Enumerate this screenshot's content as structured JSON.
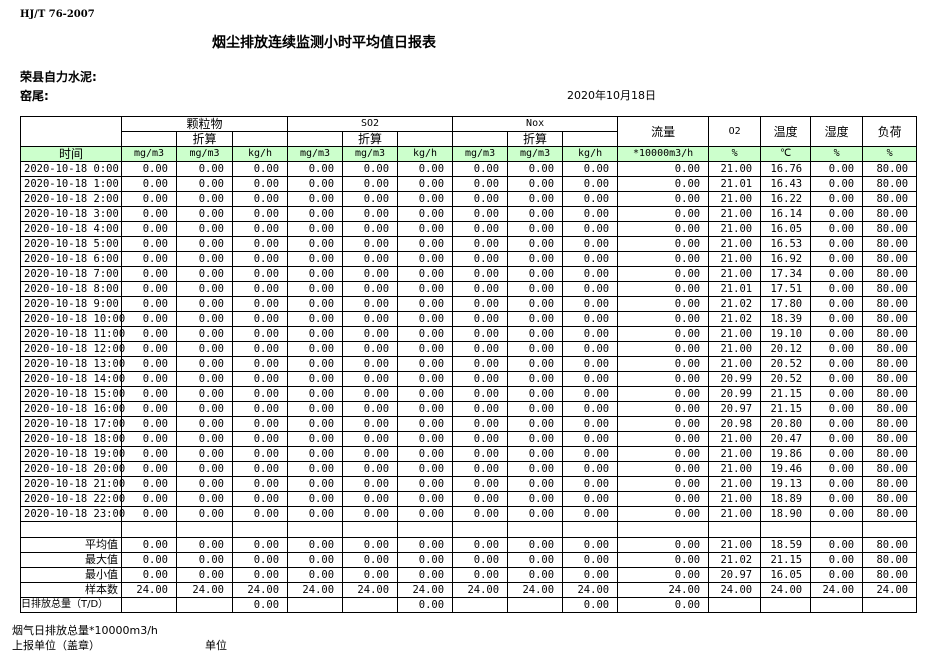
{
  "header": {
    "standard": "HJ/T  76-2007",
    "title": "烟尘排放连续监测小时平均值日报表",
    "company": "荣县自力水泥:",
    "kiln": "窑尾:",
    "date": "2020年10月18日"
  },
  "colors": {
    "unit_row_bg": "#ccffcc"
  },
  "table": {
    "groups": {
      "particulate": "颗粒物",
      "so2": "SO2",
      "nox": "Nox",
      "flow": "流量",
      "o2": "O2",
      "temp": "温度",
      "humidity": "湿度",
      "load": "负荷",
      "converted": "折算"
    },
    "units": [
      "时间",
      "mg/m3",
      "mg/m3",
      "kg/h",
      "mg/m3",
      "mg/m3",
      "kg/h",
      "mg/m3",
      "mg/m3",
      "kg/h",
      "*10000m3/h",
      "%",
      "℃",
      "%",
      "%"
    ],
    "rows": [
      [
        "2020-10-18 0:00",
        "0.00",
        "0.00",
        "0.00",
        "0.00",
        "0.00",
        "0.00",
        "0.00",
        "0.00",
        "0.00",
        "0.00",
        "21.00",
        "16.76",
        "0.00",
        "80.00"
      ],
      [
        "2020-10-18 1:00",
        "0.00",
        "0.00",
        "0.00",
        "0.00",
        "0.00",
        "0.00",
        "0.00",
        "0.00",
        "0.00",
        "0.00",
        "21.01",
        "16.43",
        "0.00",
        "80.00"
      ],
      [
        "2020-10-18 2:00",
        "0.00",
        "0.00",
        "0.00",
        "0.00",
        "0.00",
        "0.00",
        "0.00",
        "0.00",
        "0.00",
        "0.00",
        "21.00",
        "16.22",
        "0.00",
        "80.00"
      ],
      [
        "2020-10-18 3:00",
        "0.00",
        "0.00",
        "0.00",
        "0.00",
        "0.00",
        "0.00",
        "0.00",
        "0.00",
        "0.00",
        "0.00",
        "21.00",
        "16.14",
        "0.00",
        "80.00"
      ],
      [
        "2020-10-18 4:00",
        "0.00",
        "0.00",
        "0.00",
        "0.00",
        "0.00",
        "0.00",
        "0.00",
        "0.00",
        "0.00",
        "0.00",
        "21.00",
        "16.05",
        "0.00",
        "80.00"
      ],
      [
        "2020-10-18 5:00",
        "0.00",
        "0.00",
        "0.00",
        "0.00",
        "0.00",
        "0.00",
        "0.00",
        "0.00",
        "0.00",
        "0.00",
        "21.00",
        "16.53",
        "0.00",
        "80.00"
      ],
      [
        "2020-10-18 6:00",
        "0.00",
        "0.00",
        "0.00",
        "0.00",
        "0.00",
        "0.00",
        "0.00",
        "0.00",
        "0.00",
        "0.00",
        "21.00",
        "16.92",
        "0.00",
        "80.00"
      ],
      [
        "2020-10-18 7:00",
        "0.00",
        "0.00",
        "0.00",
        "0.00",
        "0.00",
        "0.00",
        "0.00",
        "0.00",
        "0.00",
        "0.00",
        "21.00",
        "17.34",
        "0.00",
        "80.00"
      ],
      [
        "2020-10-18 8:00",
        "0.00",
        "0.00",
        "0.00",
        "0.00",
        "0.00",
        "0.00",
        "0.00",
        "0.00",
        "0.00",
        "0.00",
        "21.01",
        "17.51",
        "0.00",
        "80.00"
      ],
      [
        "2020-10-18 9:00",
        "0.00",
        "0.00",
        "0.00",
        "0.00",
        "0.00",
        "0.00",
        "0.00",
        "0.00",
        "0.00",
        "0.00",
        "21.02",
        "17.80",
        "0.00",
        "80.00"
      ],
      [
        "2020-10-18 10:00",
        "0.00",
        "0.00",
        "0.00",
        "0.00",
        "0.00",
        "0.00",
        "0.00",
        "0.00",
        "0.00",
        "0.00",
        "21.02",
        "18.39",
        "0.00",
        "80.00"
      ],
      [
        "2020-10-18 11:00",
        "0.00",
        "0.00",
        "0.00",
        "0.00",
        "0.00",
        "0.00",
        "0.00",
        "0.00",
        "0.00",
        "0.00",
        "21.00",
        "19.10",
        "0.00",
        "80.00"
      ],
      [
        "2020-10-18 12:00",
        "0.00",
        "0.00",
        "0.00",
        "0.00",
        "0.00",
        "0.00",
        "0.00",
        "0.00",
        "0.00",
        "0.00",
        "21.00",
        "20.12",
        "0.00",
        "80.00"
      ],
      [
        "2020-10-18 13:00",
        "0.00",
        "0.00",
        "0.00",
        "0.00",
        "0.00",
        "0.00",
        "0.00",
        "0.00",
        "0.00",
        "0.00",
        "21.00",
        "20.52",
        "0.00",
        "80.00"
      ],
      [
        "2020-10-18 14:00",
        "0.00",
        "0.00",
        "0.00",
        "0.00",
        "0.00",
        "0.00",
        "0.00",
        "0.00",
        "0.00",
        "0.00",
        "20.99",
        "20.52",
        "0.00",
        "80.00"
      ],
      [
        "2020-10-18 15:00",
        "0.00",
        "0.00",
        "0.00",
        "0.00",
        "0.00",
        "0.00",
        "0.00",
        "0.00",
        "0.00",
        "0.00",
        "20.99",
        "21.15",
        "0.00",
        "80.00"
      ],
      [
        "2020-10-18 16:00",
        "0.00",
        "0.00",
        "0.00",
        "0.00",
        "0.00",
        "0.00",
        "0.00",
        "0.00",
        "0.00",
        "0.00",
        "20.97",
        "21.15",
        "0.00",
        "80.00"
      ],
      [
        "2020-10-18 17:00",
        "0.00",
        "0.00",
        "0.00",
        "0.00",
        "0.00",
        "0.00",
        "0.00",
        "0.00",
        "0.00",
        "0.00",
        "20.98",
        "20.80",
        "0.00",
        "80.00"
      ],
      [
        "2020-10-18 18:00",
        "0.00",
        "0.00",
        "0.00",
        "0.00",
        "0.00",
        "0.00",
        "0.00",
        "0.00",
        "0.00",
        "0.00",
        "21.00",
        "20.47",
        "0.00",
        "80.00"
      ],
      [
        "2020-10-18 19:00",
        "0.00",
        "0.00",
        "0.00",
        "0.00",
        "0.00",
        "0.00",
        "0.00",
        "0.00",
        "0.00",
        "0.00",
        "21.00",
        "19.86",
        "0.00",
        "80.00"
      ],
      [
        "2020-10-18 20:00",
        "0.00",
        "0.00",
        "0.00",
        "0.00",
        "0.00",
        "0.00",
        "0.00",
        "0.00",
        "0.00",
        "0.00",
        "21.00",
        "19.46",
        "0.00",
        "80.00"
      ],
      [
        "2020-10-18 21:00",
        "0.00",
        "0.00",
        "0.00",
        "0.00",
        "0.00",
        "0.00",
        "0.00",
        "0.00",
        "0.00",
        "0.00",
        "21.00",
        "19.13",
        "0.00",
        "80.00"
      ],
      [
        "2020-10-18 22:00",
        "0.00",
        "0.00",
        "0.00",
        "0.00",
        "0.00",
        "0.00",
        "0.00",
        "0.00",
        "0.00",
        "0.00",
        "21.00",
        "18.89",
        "0.00",
        "80.00"
      ],
      [
        "2020-10-18 23:00",
        "0.00",
        "0.00",
        "0.00",
        "0.00",
        "0.00",
        "0.00",
        "0.00",
        "0.00",
        "0.00",
        "0.00",
        "21.00",
        "18.90",
        "0.00",
        "80.00"
      ]
    ],
    "summary": [
      [
        "平均值",
        "0.00",
        "0.00",
        "0.00",
        "0.00",
        "0.00",
        "0.00",
        "0.00",
        "0.00",
        "0.00",
        "0.00",
        "21.00",
        "18.59",
        "0.00",
        "80.00"
      ],
      [
        "最大值",
        "0.00",
        "0.00",
        "0.00",
        "0.00",
        "0.00",
        "0.00",
        "0.00",
        "0.00",
        "0.00",
        "0.00",
        "21.02",
        "21.15",
        "0.00",
        "80.00"
      ],
      [
        "最小值",
        "0.00",
        "0.00",
        "0.00",
        "0.00",
        "0.00",
        "0.00",
        "0.00",
        "0.00",
        "0.00",
        "0.00",
        "20.97",
        "16.05",
        "0.00",
        "80.00"
      ],
      [
        "样本数",
        "24.00",
        "24.00",
        "24.00",
        "24.00",
        "24.00",
        "24.00",
        "24.00",
        "24.00",
        "24.00",
        "24.00",
        "24.00",
        "24.00",
        "24.00",
        "24.00"
      ]
    ],
    "daily_total": [
      "日排放总量（T/D）",
      "",
      "",
      "0.00",
      "",
      "",
      "0.00",
      "",
      "",
      "0.00",
      "0.00",
      "",
      "",
      "",
      ""
    ]
  },
  "footer": {
    "flue_gas_total": "烟气日排放总量*10000m3/h",
    "reporting_unit": "上报单位（盖章）",
    "unit": "单位"
  }
}
